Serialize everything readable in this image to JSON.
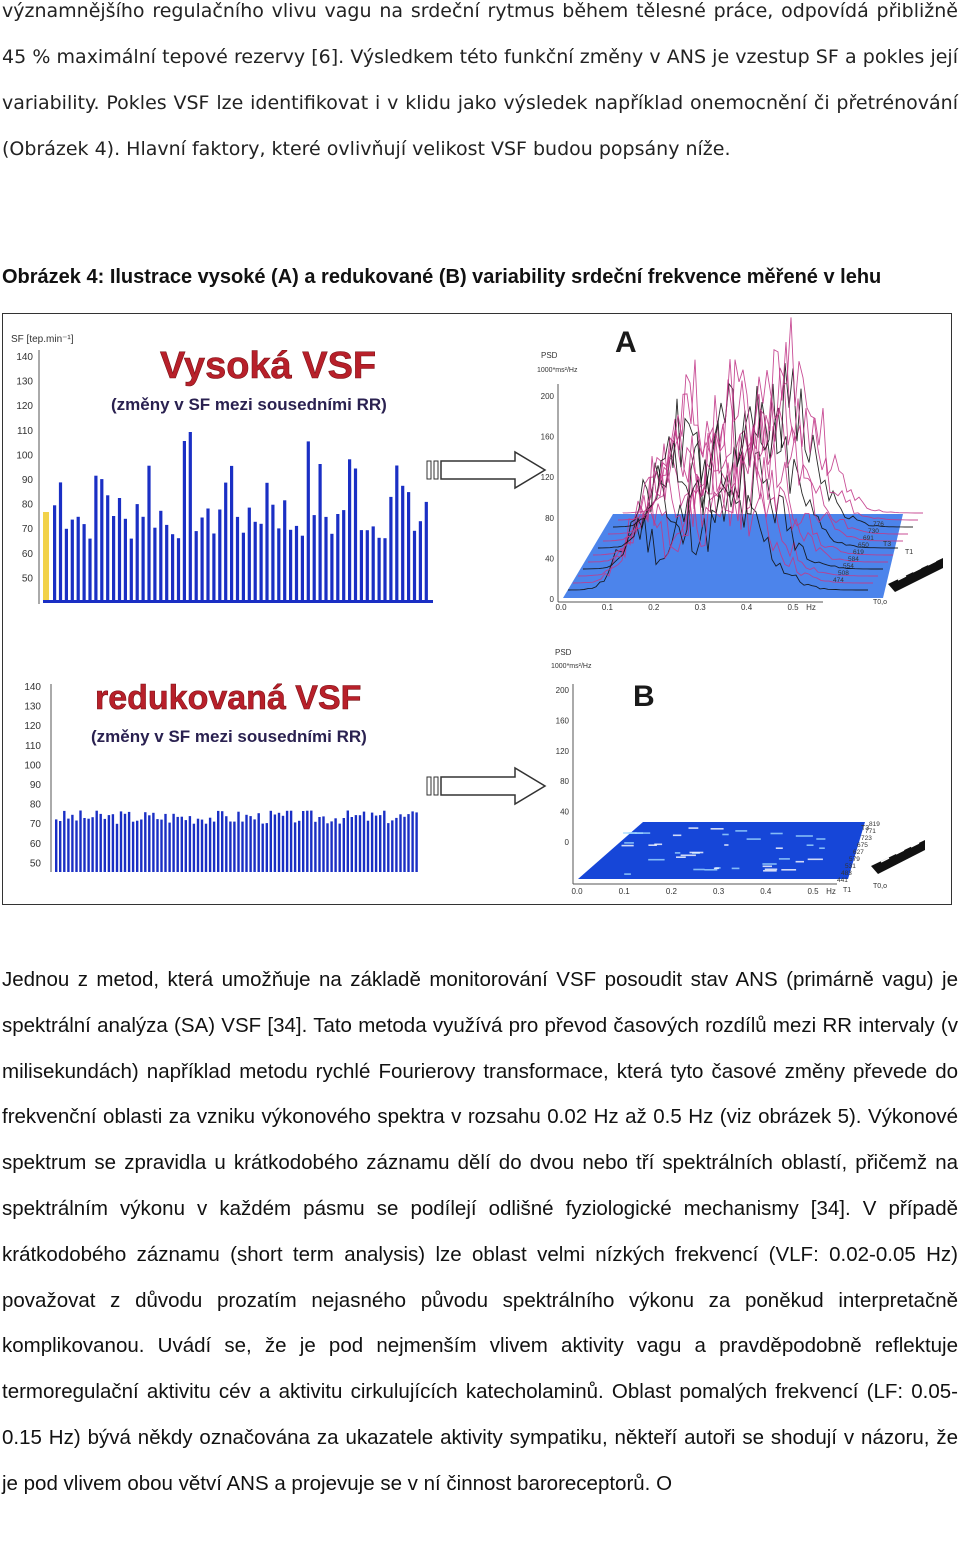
{
  "top_paragraph": "významnějšího regulačního vlivu vagu na srdeční rytmus během tělesné práce, odpovídá přibližně 45 % maximální tepové rezervy [6]. Výsledkem této funkční změny v ANS je vzestup SF a pokles její variability. Pokles VSF lze identifikovat i v klidu jako výsledek například onemocnění či přetrénování (Obrázek 4). Hlavní faktory, které ovlivňují velikost VSF budou popsány níže.",
  "figure": {
    "caption": "Obrázek 4: Ilustrace vysoké (A) a redukované (B) variability srdeční frekvence měřené v lehu",
    "panel_a": {
      "axis_label": "SF [tep.min⁻¹]",
      "title": "Vysoká VSF",
      "subtitle": "(změny v SF mezi sousedními RR)",
      "letter": "A",
      "psd_label": "PSD",
      "psd_unit": "1000*ms²/Hz",
      "hr_ticks": [
        "140",
        "130",
        "120",
        "110",
        "100",
        "90",
        "80",
        "70",
        "60",
        "50"
      ],
      "psd_ticks": [
        "200",
        "160",
        "120",
        "80",
        "40",
        "0"
      ],
      "hz_ticks": [
        "0.0",
        "0.1",
        "0.2",
        "0.3",
        "0.4",
        "0.5"
      ],
      "hz_label": "Hz",
      "t_labels": [
        "T3",
        "T1",
        "T0,o"
      ],
      "side_numbers": [
        "776",
        "730",
        "691",
        "650",
        "619",
        "584",
        "554",
        "508",
        "474"
      ]
    },
    "panel_b": {
      "title": "redukovaná VSF",
      "subtitle": "(změny v SF mezi sousedními RR)",
      "letter": "B",
      "psd_label": "PSD",
      "psd_unit": "1000*ms²/Hz",
      "hr_ticks": [
        "140",
        "130",
        "120",
        "110",
        "100",
        "90",
        "80",
        "70",
        "60",
        "50"
      ],
      "psd_ticks": [
        "200",
        "160",
        "120",
        "80",
        "40",
        "0"
      ],
      "hz_ticks": [
        "0.0",
        "0.1",
        "0.2",
        "0.3",
        "0.4",
        "0.5"
      ],
      "hz_label": "Hz",
      "t_labels": [
        "T3",
        "T1",
        "T0,o"
      ],
      "side_numbers": [
        "819",
        "771",
        "723",
        "675",
        "627",
        "579",
        "531",
        "483",
        "441"
      ]
    },
    "colors": {
      "bars": "#1a2fc4",
      "title_red": "#b8202a",
      "peaks": "#c23a8a",
      "floor": "#1646d8"
    }
  },
  "paragraph_2": "Jednou z metod, která umožňuje na základě monitorování VSF posoudit stav ANS (primárně vagu) je spektrální analýza (SA) VSF [34]. Tato metoda využívá pro převod časových rozdílů mezi RR intervaly (v milisekundách) například metodu rychlé Fourierovy transformace, která tyto časové změny převede do frekvenční oblasti za vzniku výkonového spektra v rozsahu 0.02 Hz až 0.5 Hz (viz obrázek 5). Výkonové spektrum se zpravidla u krátkodobého záznamu dělí do dvou nebo tří spektrálních oblastí, přičemž na spektrálním výkonu v každém pásmu se podílejí odlišné fyziologické mechanismy [34]. V případě krátkodobého záznamu (short term analysis) lze oblast velmi nízkých frekvencí (VLF: 0.02-0.05 Hz) považovat z důvodu prozatím nejasného původu spektrálního výkonu za poněkud interpretačně komplikovanou. Uvádí se, že je pod nejmenším vlivem aktivity vagu a pravděpodobně reflektuje termoregulační aktivitu cév a aktivitu cirkulujících katecholaminů. Oblast pomalých frekvencí (LF: 0.05-0.15 Hz) bývá někdy označována za ukazatele aktivity sympatiku, někteří autoři se shodují v názoru, že je pod vlivem obou větví ANS a projevuje se v ní činnost baroreceptorů. O"
}
